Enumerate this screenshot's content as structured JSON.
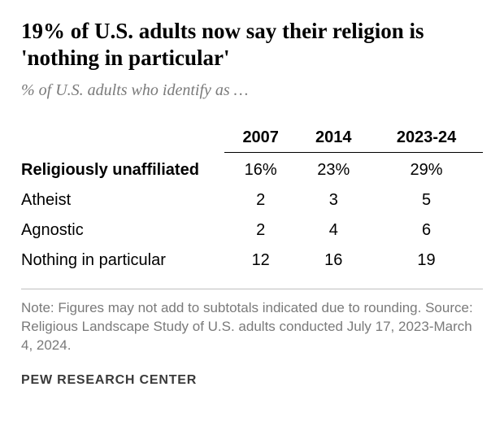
{
  "title": "19% of U.S. adults now say their religion is 'nothing in particular'",
  "subtitle": "% of U.S. adults who identify as …",
  "table": {
    "columns": [
      "2007",
      "2014",
      "2023-24"
    ],
    "col_align": "center",
    "header_font_weight": "bold",
    "header_border_color": "#000000",
    "rows": [
      {
        "label": "Religiously unaffiliated",
        "values": [
          "16%",
          "23%",
          "29%"
        ],
        "bold_label": true
      },
      {
        "label": "Atheist",
        "values": [
          "2",
          "3",
          "5"
        ],
        "bold_label": false
      },
      {
        "label": "Agnostic",
        "values": [
          "2",
          "4",
          "6"
        ],
        "bold_label": false
      },
      {
        "label": "Nothing in particular",
        "values": [
          "12",
          "16",
          "19"
        ],
        "bold_label": false
      }
    ]
  },
  "note": "Note: Figures may not add to subtotals indicated due to rounding. Source: Religious Landscape Study of U.S. adults conducted July 17, 2023-March 4, 2024.",
  "footer": "PEW RESEARCH CENTER",
  "colors": {
    "text_primary": "#000000",
    "text_muted": "#7a7a7a",
    "divider": "#bfbfbf",
    "background": "#ffffff"
  },
  "typography": {
    "title_fontsize": 27,
    "subtitle_fontsize": 20,
    "table_fontsize": 20,
    "note_fontsize": 17,
    "footer_fontsize": 16
  }
}
